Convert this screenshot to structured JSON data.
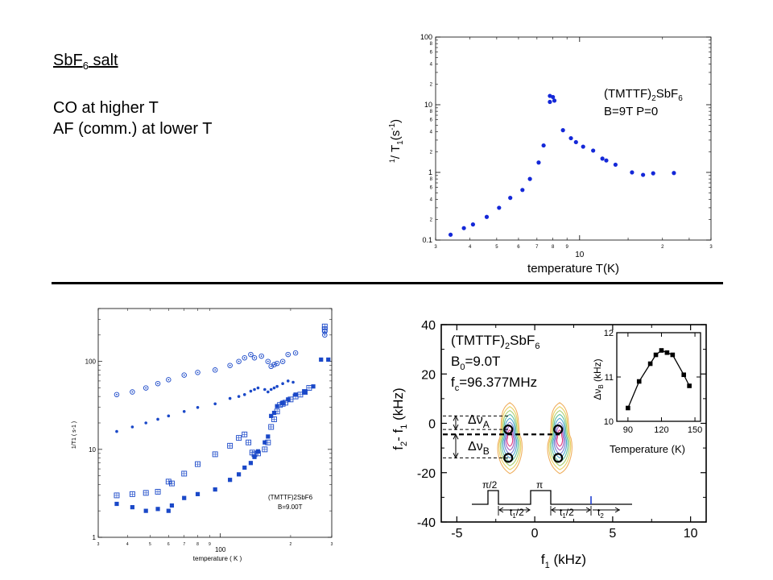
{
  "slide": {
    "title_main": "SbF",
    "title_sub": "6",
    "title_rest": " salt",
    "bullets": [
      "CO at higher T",
      "AF (comm.) at lower T"
    ]
  },
  "chart_data": [
    {
      "type": "scatter",
      "xscale": "log",
      "yscale": "log",
      "xlim": [
        3,
        30
      ],
      "ylim": [
        0.1,
        100
      ],
      "xticks_major": [
        "10"
      ],
      "xticks_minor": [
        "3",
        "4",
        "5",
        "6",
        "7",
        "8",
        "9",
        "2",
        "3"
      ],
      "yticks_major": [
        "0.1",
        "1",
        "10",
        "100"
      ],
      "yticks_minor": [
        "2",
        "4",
        "6",
        "8"
      ],
      "xlabel": "temperature T(K)",
      "ylabel": "1/T1 (s-1)",
      "ylabel_parts": {
        "pre": "1",
        "main": "/ T",
        "sub": "1",
        "post": "(s",
        "sup": "-1",
        "close": ")"
      },
      "annotation": {
        "l1_main": "(TMTTF)",
        "l1_sub": "2",
        "l1_rest": "SbF",
        "l1_sub2": "6",
        "l2": "B=9T P=0"
      },
      "color": "#1428d8",
      "series": [
        {
          "points": [
            [
              3.4,
              0.12
            ],
            [
              3.8,
              0.15
            ],
            [
              4.1,
              0.17
            ],
            [
              4.6,
              0.22
            ],
            [
              5.1,
              0.3
            ],
            [
              5.6,
              0.42
            ],
            [
              6.2,
              0.55
            ],
            [
              6.6,
              0.8
            ],
            [
              7.1,
              1.4
            ],
            [
              7.4,
              2.5
            ],
            [
              7.8,
              11
            ],
            [
              7.8,
              13.5
            ],
            [
              8.0,
              13
            ],
            [
              8.1,
              11.5
            ],
            [
              8.7,
              4.2
            ],
            [
              9.3,
              3.2
            ],
            [
              9.7,
              2.8
            ],
            [
              10.3,
              2.4
            ],
            [
              11.2,
              2.1
            ],
            [
              12.1,
              1.6
            ],
            [
              12.5,
              1.5
            ],
            [
              13.5,
              1.3
            ],
            [
              15.5,
              1.0
            ],
            [
              17,
              0.92
            ],
            [
              18.5,
              0.97
            ],
            [
              22,
              0.98
            ]
          ]
        }
      ]
    },
    {
      "type": "scatter",
      "xscale": "log",
      "yscale": "log",
      "xlim": [
        30,
        300
      ],
      "ylim": [
        1,
        400
      ],
      "xticks_major": [
        "100"
      ],
      "xticks_minor": [
        "3",
        "4",
        "5",
        "6",
        "7",
        "8",
        "9",
        "2",
        "3"
      ],
      "yticks_major": [
        "1",
        "10",
        "100"
      ],
      "xlabel": "temperature ( K )",
      "ylabel": "1/T1 ( s-1 )",
      "annotation": {
        "l1": "(TMTTF)2SbF6",
        "l2": "B=9.00T"
      },
      "color": "#1a48c8",
      "series": [
        {
          "marker": "circle-dot",
          "points": [
            [
              36,
              42
            ],
            [
              42,
              45
            ],
            [
              48,
              50
            ],
            [
              54,
              56
            ],
            [
              60,
              62
            ],
            [
              70,
              70
            ],
            [
              80,
              75
            ],
            [
              95,
              80
            ],
            [
              110,
              90
            ],
            [
              120,
              100
            ],
            [
              127,
              110
            ],
            [
              135,
              120
            ],
            [
              140,
              110
            ],
            [
              150,
              115
            ],
            [
              160,
              100
            ],
            [
              165,
              88
            ],
            [
              170,
              92
            ],
            [
              175,
              95
            ],
            [
              185,
              100
            ],
            [
              195,
              120
            ],
            [
              210,
              125
            ],
            [
              280,
              220
            ],
            [
              280,
              200
            ]
          ]
        },
        {
          "marker": "dot",
          "points": [
            [
              36,
              16
            ],
            [
              42,
              18
            ],
            [
              48,
              20
            ],
            [
              54,
              22
            ],
            [
              60,
              24
            ],
            [
              70,
              27
            ],
            [
              80,
              30
            ],
            [
              95,
              33
            ],
            [
              110,
              38
            ],
            [
              120,
              40
            ],
            [
              127,
              42
            ],
            [
              135,
              46
            ],
            [
              140,
              48
            ],
            [
              145,
              50
            ],
            [
              155,
              48
            ],
            [
              160,
              45
            ],
            [
              165,
              48
            ],
            [
              170,
              50
            ],
            [
              175,
              52
            ],
            [
              185,
              56
            ],
            [
              195,
              60
            ],
            [
              205,
              58
            ]
          ]
        },
        {
          "marker": "boxed-plus",
          "points": [
            [
              36,
              3.0
            ],
            [
              42,
              3.1
            ],
            [
              48,
              3.2
            ],
            [
              54,
              3.3
            ],
            [
              60,
              4.3
            ],
            [
              62,
              4.1
            ],
            [
              70,
              5.3
            ],
            [
              80,
              6.8
            ],
            [
              95,
              8.8
            ],
            [
              110,
              11
            ],
            [
              120,
              13.5
            ],
            [
              127,
              14.8
            ],
            [
              132,
              12
            ],
            [
              137,
              9.2
            ],
            [
              140,
              8.8
            ],
            [
              145,
              9.0
            ],
            [
              155,
              10
            ],
            [
              160,
              12
            ],
            [
              165,
              18
            ],
            [
              170,
              22
            ],
            [
              175,
              27
            ],
            [
              180,
              32
            ],
            [
              185,
              33
            ],
            [
              190,
              34
            ],
            [
              200,
              37
            ],
            [
              210,
              40
            ],
            [
              220,
              42
            ],
            [
              230,
              45
            ],
            [
              240,
              50
            ],
            [
              280,
              230
            ],
            [
              280,
              250
            ]
          ]
        },
        {
          "marker": "square",
          "points": [
            [
              36,
              2.4
            ],
            [
              42,
              2.2
            ],
            [
              48,
              2.0
            ],
            [
              54,
              2.1
            ],
            [
              60,
              2.0
            ],
            [
              62,
              2.3
            ],
            [
              70,
              2.8
            ],
            [
              80,
              3.1
            ],
            [
              95,
              3.5
            ],
            [
              110,
              4.5
            ],
            [
              120,
              5.2
            ],
            [
              127,
              6.2
            ],
            [
              135,
              7.0
            ],
            [
              140,
              8.2
            ],
            [
              145,
              9.5
            ],
            [
              155,
              12
            ],
            [
              160,
              14
            ],
            [
              165,
              24
            ],
            [
              170,
              26
            ],
            [
              175,
              31
            ],
            [
              185,
              34
            ],
            [
              195,
              37
            ],
            [
              210,
              42
            ],
            [
              230,
              45
            ],
            [
              250,
              52
            ],
            [
              270,
              105
            ],
            [
              290,
              105
            ]
          ]
        }
      ]
    },
    {
      "type": "contour-with-inset",
      "xlim": [
        -6,
        11
      ],
      "ylim": [
        -40,
        40
      ],
      "xticks": [
        "-5",
        "0",
        "5",
        "10"
      ],
      "yticks": [
        "40",
        "20",
        "0",
        "-20",
        "-40"
      ],
      "xlabel": {
        "main": "f",
        "sub": "1",
        "rest": " (kHz)"
      },
      "ylabel": {
        "a": "f",
        "a_sub": "2",
        "b": "- f",
        "b_sub": "1",
        "rest": " (kHz)"
      },
      "legend_lines": [
        {
          "main": "(TMTTF)",
          "sub": "2",
          "rest": "SbF",
          "sub2": "6"
        },
        {
          "main": "B",
          "sub": "0",
          "rest": "=9.0T"
        },
        {
          "main": "f",
          "sub": "c",
          "rest": "=96.377MHz"
        }
      ],
      "delta_labels": {
        "A": "A",
        "B": "B",
        "symbol": "Δν"
      },
      "peaks": [
        [
          -1.7,
          -2.5
        ],
        [
          -1.7,
          -14
        ],
        [
          1.5,
          -2.5
        ],
        [
          1.5,
          -14
        ]
      ],
      "pulse_sequence": {
        "p1": "π/2",
        "p2": "π",
        "t_half_a": "t",
        "t_half_a_sub": "1",
        "t_half_a_rest": "/2",
        "t_half_b": "t",
        "t_half_b_sub": "1",
        "t_half_b_rest": "/2",
        "t2": "t",
        "t2_sub": "2"
      },
      "inset": {
        "type": "line",
        "xlabel": "Temperature (K)",
        "ylabel": "ΔνB (kHz)",
        "ylabel_parts": {
          "main": "Δν",
          "sub": "B",
          "rest": " (kHz)"
        },
        "xlim": [
          80,
          155
        ],
        "ylim": [
          10,
          12
        ],
        "xticks": [
          "90",
          "120",
          "150"
        ],
        "yticks": [
          "10",
          "11",
          "12"
        ],
        "x": [
          90,
          100,
          110,
          115,
          120,
          125,
          130,
          140,
          145
        ],
        "y": [
          10.3,
          10.9,
          11.3,
          11.5,
          11.6,
          11.55,
          11.5,
          11.05,
          10.8
        ]
      }
    }
  ]
}
